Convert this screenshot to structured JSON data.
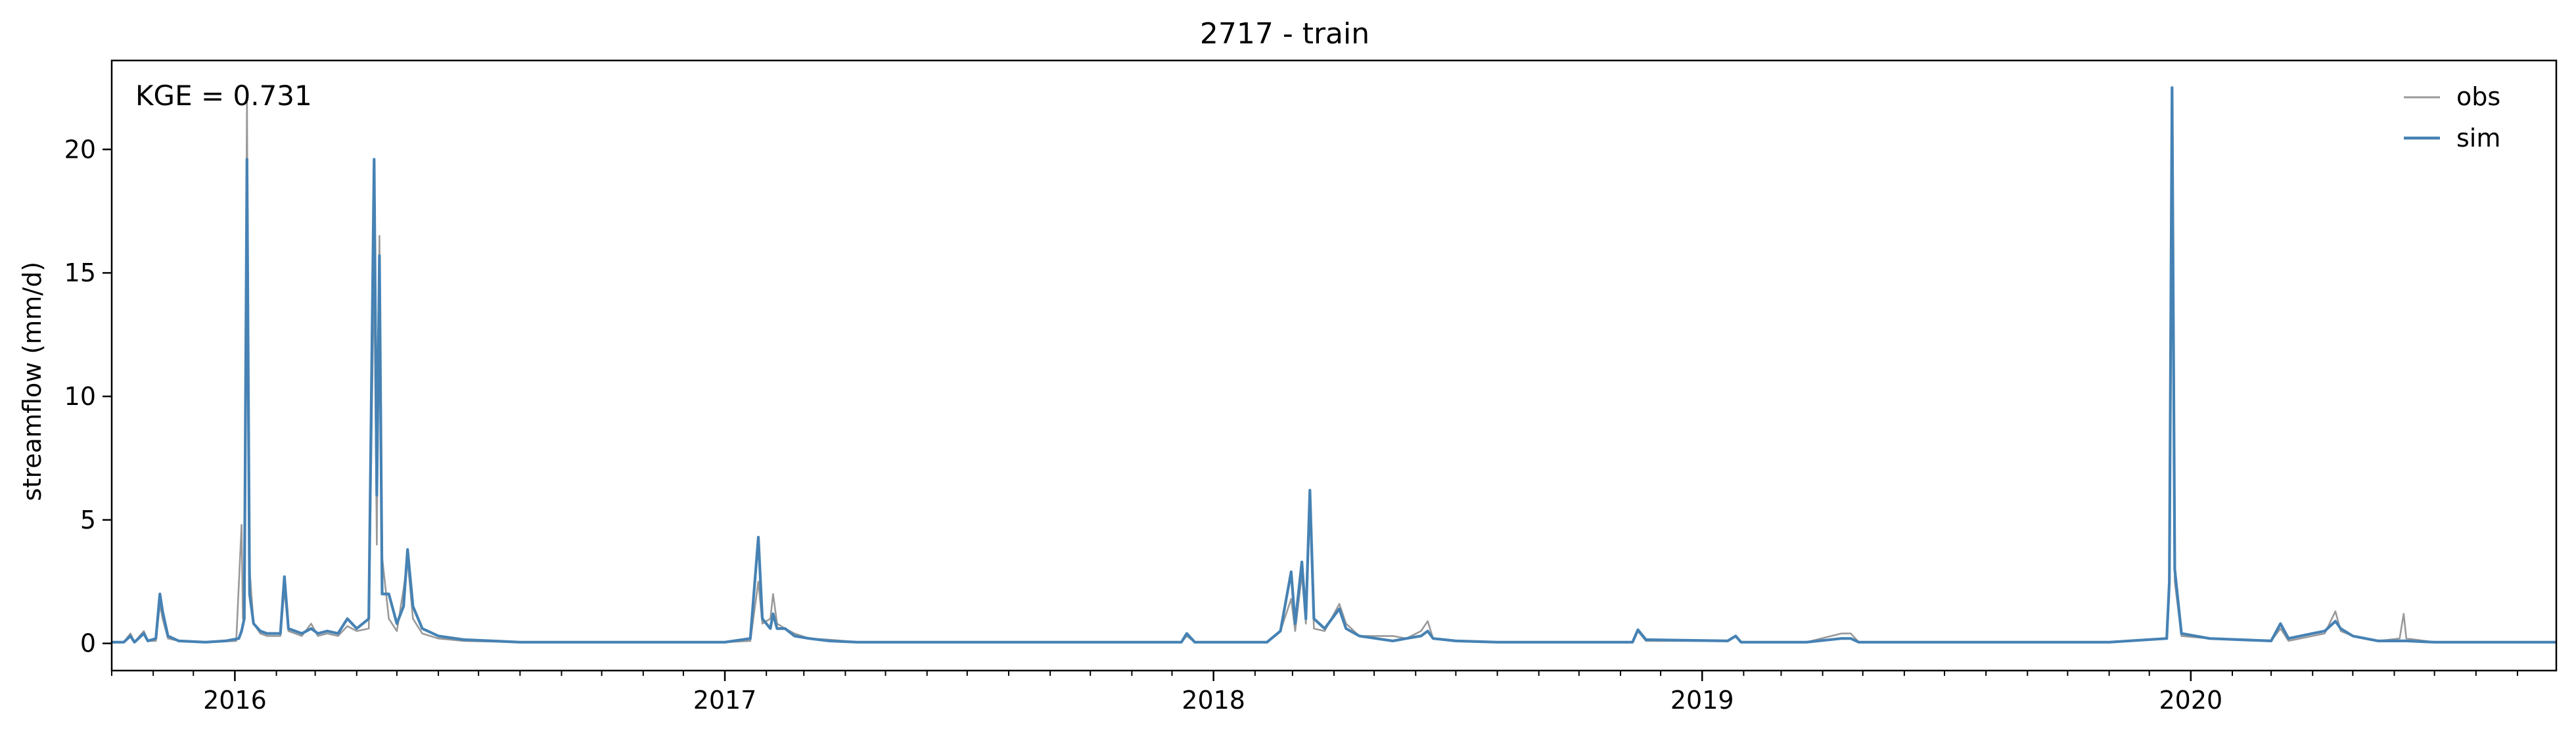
{
  "chart_data": {
    "type": "line",
    "title": "2717 - train",
    "ylabel": "streamflow (mm/d)",
    "xlabel": "",
    "xlim": [
      "2015-10-01",
      "2020-09-30"
    ],
    "ylim": [
      -1.1,
      23.6
    ],
    "yticks": [
      0,
      5,
      10,
      15,
      20
    ],
    "ytick_labels": [
      "0",
      "5",
      "10",
      "15",
      "20"
    ],
    "xticks": [
      "2016-01-01",
      "2017-01-01",
      "2018-01-01",
      "2019-01-01",
      "2020-01-01"
    ],
    "xtick_labels": [
      "2016",
      "2017",
      "2018",
      "2019",
      "2020"
    ],
    "minor_xticks": "monthly",
    "grid": false,
    "legend_position": "top-right",
    "annotation": "KGE = 0.731",
    "series": [
      {
        "name": "obs",
        "color": "#999999",
        "points": [
          [
            "2015-10-01",
            0.05
          ],
          [
            "2015-10-10",
            0.05
          ],
          [
            "2015-10-15",
            0.4
          ],
          [
            "2015-10-18",
            0.05
          ],
          [
            "2015-10-25",
            0.5
          ],
          [
            "2015-10-28",
            0.1
          ],
          [
            "2015-11-03",
            0.1
          ],
          [
            "2015-11-06",
            1.6
          ],
          [
            "2015-11-08",
            1.0
          ],
          [
            "2015-11-12",
            0.2
          ],
          [
            "2015-11-20",
            0.1
          ],
          [
            "2015-12-10",
            0.05
          ],
          [
            "2015-12-25",
            0.08
          ],
          [
            "2016-01-02",
            0.1
          ],
          [
            "2016-01-06",
            4.8
          ],
          [
            "2016-01-07",
            1.0
          ],
          [
            "2016-01-08",
            2.0
          ],
          [
            "2016-01-10",
            22.0
          ],
          [
            "2016-01-12",
            3.0
          ],
          [
            "2016-01-15",
            0.8
          ],
          [
            "2016-01-20",
            0.4
          ],
          [
            "2016-01-25",
            0.3
          ],
          [
            "2016-02-04",
            0.3
          ],
          [
            "2016-02-07",
            2.2
          ],
          [
            "2016-02-10",
            0.5
          ],
          [
            "2016-02-20",
            0.3
          ],
          [
            "2016-02-27",
            0.8
          ],
          [
            "2016-03-03",
            0.3
          ],
          [
            "2016-03-10",
            0.4
          ],
          [
            "2016-03-18",
            0.3
          ],
          [
            "2016-03-25",
            0.7
          ],
          [
            "2016-04-01",
            0.5
          ],
          [
            "2016-04-10",
            0.6
          ],
          [
            "2016-04-14",
            15.5
          ],
          [
            "2016-04-16",
            4.0
          ],
          [
            "2016-04-18",
            16.5
          ],
          [
            "2016-04-20",
            3.5
          ],
          [
            "2016-04-25",
            1.0
          ],
          [
            "2016-05-01",
            0.5
          ],
          [
            "2016-05-06",
            2.2
          ],
          [
            "2016-05-09",
            3.4
          ],
          [
            "2016-05-13",
            1.0
          ],
          [
            "2016-05-20",
            0.4
          ],
          [
            "2016-06-01",
            0.2
          ],
          [
            "2016-06-20",
            0.1
          ],
          [
            "2016-08-01",
            0.05
          ],
          [
            "2017-01-01",
            0.05
          ],
          [
            "2017-01-20",
            0.1
          ],
          [
            "2017-01-26",
            2.5
          ],
          [
            "2017-01-29",
            0.8
          ],
          [
            "2017-02-04",
            1.0
          ],
          [
            "2017-02-06",
            2.0
          ],
          [
            "2017-02-09",
            0.8
          ],
          [
            "2017-02-15",
            0.6
          ],
          [
            "2017-02-22",
            0.4
          ],
          [
            "2017-03-05",
            0.2
          ],
          [
            "2017-03-20",
            0.15
          ],
          [
            "2017-04-10",
            0.05
          ],
          [
            "2017-12-08",
            0.05
          ],
          [
            "2017-12-12",
            0.3
          ],
          [
            "2017-12-18",
            0.05
          ],
          [
            "2018-02-10",
            0.05
          ],
          [
            "2018-02-20",
            0.5
          ],
          [
            "2018-02-28",
            1.8
          ],
          [
            "2018-03-03",
            0.5
          ],
          [
            "2018-03-08",
            2.8
          ],
          [
            "2018-03-11",
            0.8
          ],
          [
            "2018-03-14",
            5.5
          ],
          [
            "2018-03-17",
            0.6
          ],
          [
            "2018-03-25",
            0.5
          ],
          [
            "2018-04-05",
            1.6
          ],
          [
            "2018-04-10",
            0.8
          ],
          [
            "2018-04-20",
            0.3
          ],
          [
            "2018-05-15",
            0.3
          ],
          [
            "2018-05-25",
            0.2
          ],
          [
            "2018-06-05",
            0.5
          ],
          [
            "2018-06-10",
            0.9
          ],
          [
            "2018-06-14",
            0.2
          ],
          [
            "2018-07-01",
            0.1
          ],
          [
            "2018-08-01",
            0.05
          ],
          [
            "2018-11-10",
            0.05
          ],
          [
            "2018-11-14",
            0.5
          ],
          [
            "2018-11-20",
            0.1
          ],
          [
            "2019-01-20",
            0.1
          ],
          [
            "2019-01-26",
            0.3
          ],
          [
            "2019-01-30",
            0.05
          ],
          [
            "2019-03-20",
            0.05
          ],
          [
            "2019-04-15",
            0.4
          ],
          [
            "2019-04-22",
            0.4
          ],
          [
            "2019-04-28",
            0.05
          ],
          [
            "2019-11-01",
            0.05
          ],
          [
            "2019-12-14",
            0.2
          ],
          [
            "2019-12-16",
            2.0
          ],
          [
            "2019-12-18",
            22.0
          ],
          [
            "2019-12-20",
            2.5
          ],
          [
            "2019-12-25",
            0.3
          ],
          [
            "2020-01-15",
            0.2
          ],
          [
            "2020-03-01",
            0.1
          ],
          [
            "2020-03-08",
            0.6
          ],
          [
            "2020-03-14",
            0.1
          ],
          [
            "2020-04-01",
            0.3
          ],
          [
            "2020-04-10",
            0.4
          ],
          [
            "2020-04-18",
            1.3
          ],
          [
            "2020-04-22",
            0.5
          ],
          [
            "2020-05-01",
            0.3
          ],
          [
            "2020-05-20",
            0.1
          ],
          [
            "2020-06-05",
            0.2
          ],
          [
            "2020-06-08",
            1.2
          ],
          [
            "2020-06-10",
            0.2
          ],
          [
            "2020-07-01",
            0.05
          ],
          [
            "2020-09-30",
            0.05
          ]
        ]
      },
      {
        "name": "sim",
        "color": "#4682b4",
        "points": [
          [
            "2015-10-01",
            0.05
          ],
          [
            "2015-10-10",
            0.05
          ],
          [
            "2015-10-15",
            0.3
          ],
          [
            "2015-10-18",
            0.05
          ],
          [
            "2015-10-25",
            0.4
          ],
          [
            "2015-10-28",
            0.1
          ],
          [
            "2015-11-03",
            0.2
          ],
          [
            "2015-11-06",
            2.0
          ],
          [
            "2015-11-08",
            1.3
          ],
          [
            "2015-11-12",
            0.3
          ],
          [
            "2015-11-20",
            0.1
          ],
          [
            "2015-12-10",
            0.05
          ],
          [
            "2015-12-25",
            0.1
          ],
          [
            "2016-01-04",
            0.2
          ],
          [
            "2016-01-06",
            0.5
          ],
          [
            "2016-01-08",
            1.0
          ],
          [
            "2016-01-10",
            19.6
          ],
          [
            "2016-01-12",
            2.0
          ],
          [
            "2016-01-15",
            0.8
          ],
          [
            "2016-01-20",
            0.5
          ],
          [
            "2016-01-25",
            0.4
          ],
          [
            "2016-02-04",
            0.4
          ],
          [
            "2016-02-07",
            2.7
          ],
          [
            "2016-02-10",
            0.6
          ],
          [
            "2016-02-20",
            0.4
          ],
          [
            "2016-02-27",
            0.6
          ],
          [
            "2016-03-03",
            0.4
          ],
          [
            "2016-03-10",
            0.5
          ],
          [
            "2016-03-18",
            0.4
          ],
          [
            "2016-03-25",
            1.0
          ],
          [
            "2016-04-01",
            0.6
          ],
          [
            "2016-04-10",
            1.0
          ],
          [
            "2016-04-14",
            19.6
          ],
          [
            "2016-04-16",
            6.0
          ],
          [
            "2016-04-18",
            15.7
          ],
          [
            "2016-04-20",
            2.0
          ],
          [
            "2016-04-25",
            2.0
          ],
          [
            "2016-05-01",
            0.8
          ],
          [
            "2016-05-06",
            1.5
          ],
          [
            "2016-05-09",
            3.8
          ],
          [
            "2016-05-13",
            1.5
          ],
          [
            "2016-05-20",
            0.6
          ],
          [
            "2016-06-01",
            0.3
          ],
          [
            "2016-06-20",
            0.15
          ],
          [
            "2016-08-01",
            0.05
          ],
          [
            "2017-01-01",
            0.05
          ],
          [
            "2017-01-20",
            0.2
          ],
          [
            "2017-01-26",
            4.3
          ],
          [
            "2017-01-29",
            1.0
          ],
          [
            "2017-02-04",
            0.6
          ],
          [
            "2017-02-06",
            1.2
          ],
          [
            "2017-02-09",
            0.6
          ],
          [
            "2017-02-15",
            0.6
          ],
          [
            "2017-02-22",
            0.3
          ],
          [
            "2017-03-05",
            0.2
          ],
          [
            "2017-03-20",
            0.1
          ],
          [
            "2017-04-10",
            0.05
          ],
          [
            "2017-12-08",
            0.05
          ],
          [
            "2017-12-12",
            0.4
          ],
          [
            "2017-12-18",
            0.05
          ],
          [
            "2018-02-10",
            0.05
          ],
          [
            "2018-02-20",
            0.5
          ],
          [
            "2018-02-28",
            2.9
          ],
          [
            "2018-03-03",
            0.8
          ],
          [
            "2018-03-08",
            3.3
          ],
          [
            "2018-03-11",
            1.0
          ],
          [
            "2018-03-14",
            6.2
          ],
          [
            "2018-03-17",
            1.0
          ],
          [
            "2018-03-25",
            0.6
          ],
          [
            "2018-04-05",
            1.4
          ],
          [
            "2018-04-10",
            0.6
          ],
          [
            "2018-04-20",
            0.3
          ],
          [
            "2018-05-15",
            0.1
          ],
          [
            "2018-05-25",
            0.2
          ],
          [
            "2018-06-05",
            0.3
          ],
          [
            "2018-06-10",
            0.5
          ],
          [
            "2018-06-14",
            0.2
          ],
          [
            "2018-07-01",
            0.1
          ],
          [
            "2018-08-01",
            0.05
          ],
          [
            "2018-11-10",
            0.05
          ],
          [
            "2018-11-14",
            0.55
          ],
          [
            "2018-11-20",
            0.15
          ],
          [
            "2019-01-20",
            0.1
          ],
          [
            "2019-01-26",
            0.3
          ],
          [
            "2019-01-30",
            0.05
          ],
          [
            "2019-03-20",
            0.05
          ],
          [
            "2019-04-15",
            0.2
          ],
          [
            "2019-04-22",
            0.2
          ],
          [
            "2019-04-28",
            0.05
          ],
          [
            "2019-11-01",
            0.05
          ],
          [
            "2019-12-14",
            0.2
          ],
          [
            "2019-12-16",
            2.5
          ],
          [
            "2019-12-18",
            22.5
          ],
          [
            "2019-12-20",
            3.0
          ],
          [
            "2019-12-25",
            0.4
          ],
          [
            "2020-01-15",
            0.2
          ],
          [
            "2020-03-01",
            0.1
          ],
          [
            "2020-03-08",
            0.8
          ],
          [
            "2020-03-14",
            0.2
          ],
          [
            "2020-04-01",
            0.4
          ],
          [
            "2020-04-10",
            0.5
          ],
          [
            "2020-04-18",
            0.9
          ],
          [
            "2020-04-22",
            0.6
          ],
          [
            "2020-05-01",
            0.3
          ],
          [
            "2020-05-20",
            0.1
          ],
          [
            "2020-06-05",
            0.1
          ],
          [
            "2020-06-08",
            0.1
          ],
          [
            "2020-06-10",
            0.1
          ],
          [
            "2020-07-01",
            0.05
          ],
          [
            "2020-09-30",
            0.05
          ]
        ]
      }
    ]
  }
}
